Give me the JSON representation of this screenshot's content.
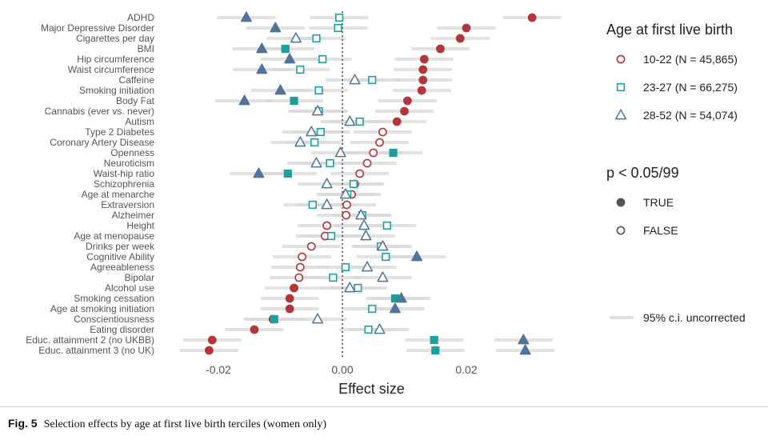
{
  "caption": {
    "label": "Fig. 5",
    "text": "Selection effects by age at first live birth terciles (women only)"
  },
  "chart_data": {
    "type": "scatter",
    "xlabel": "Effect size",
    "xlim": [
      -0.026,
      0.036
    ],
    "xticks": [
      -0.02,
      0.0,
      0.02
    ],
    "xtick_labels": [
      "-0.02",
      "0.00",
      "0.02"
    ],
    "ci_half_width": 0.0045,
    "zero_line": 0.0,
    "categories": [
      "ADHD",
      "Major Depressive Disorder",
      "Cigarettes per day",
      "BMI",
      "Hip circumference",
      "Waist circumference",
      "Caffeine",
      "Smoking initiation",
      "Body Fat",
      "Cannabis (ever vs. never)",
      "Autism",
      "Type 2 Diabetes",
      "Coronary Artery Disease",
      "Openness",
      "Neuroticism",
      "Waist-hip ratio",
      "Schizophrenia",
      "Age at menarche",
      "Extraversion",
      "Alzheimer",
      "Height",
      "Age at menopause",
      "Drinks per week",
      "Cognitive Ability",
      "Agreeableness",
      "Bipolar",
      "Alcohol use",
      "Smoking cessation",
      "Age at smoking initiation",
      "Conscientiousness",
      "Eating disorder",
      "Educ. attainment 2 (no UKBB)",
      "Educ. attainment 3 (no UK)"
    ],
    "series": [
      {
        "name": "10-22 (N = 45,865)",
        "shape": "circle",
        "color": "#b2373b",
        "values": [
          0.0306,
          0.02,
          0.019,
          0.0158,
          0.0132,
          0.013,
          0.013,
          0.0128,
          0.0105,
          0.01,
          0.0088,
          0.0065,
          0.006,
          0.005,
          0.004,
          0.0028,
          0.002,
          0.0015,
          0.0007,
          0.0006,
          -0.0025,
          -0.0028,
          -0.005,
          -0.0065,
          -0.0068,
          -0.007,
          -0.0078,
          -0.0085,
          -0.0085,
          -0.0112,
          -0.0142,
          -0.021,
          -0.0215
        ],
        "significant": [
          true,
          true,
          true,
          true,
          true,
          true,
          true,
          true,
          true,
          true,
          true,
          false,
          false,
          false,
          false,
          false,
          false,
          false,
          false,
          false,
          false,
          false,
          false,
          false,
          false,
          false,
          true,
          true,
          true,
          true,
          true,
          true,
          true
        ]
      },
      {
        "name": "23-27 (N = 66,275)",
        "shape": "square",
        "color": "#1f9e9e",
        "values": [
          -0.0005,
          -0.0007,
          -0.0042,
          -0.0092,
          -0.0032,
          -0.0068,
          0.0048,
          -0.0038,
          -0.0078,
          -0.0038,
          0.0028,
          -0.0035,
          -0.0045,
          0.0082,
          -0.002,
          -0.0088,
          0.0018,
          0.0008,
          -0.0048,
          0.0032,
          0.0072,
          -0.0018,
          0.0062,
          0.007,
          0.0005,
          -0.0015,
          0.0025,
          0.0085,
          0.0048,
          -0.011,
          0.0042,
          0.0148,
          0.015
        ],
        "significant": [
          false,
          false,
          false,
          true,
          false,
          false,
          false,
          false,
          true,
          false,
          false,
          false,
          false,
          true,
          false,
          true,
          false,
          false,
          false,
          false,
          false,
          false,
          false,
          false,
          false,
          false,
          false,
          true,
          false,
          true,
          false,
          true,
          true
        ]
      },
      {
        "name": "28-52 (N = 54,074)",
        "shape": "triangle",
        "color": "#4f7497",
        "values": [
          -0.0155,
          -0.0108,
          -0.0075,
          -0.013,
          -0.0085,
          -0.013,
          0.002,
          -0.01,
          -0.0158,
          -0.004,
          0.0012,
          -0.005,
          -0.0068,
          -0.0003,
          -0.0042,
          -0.0135,
          -0.0025,
          0.0005,
          -0.0025,
          0.003,
          0.0035,
          0.0038,
          0.0065,
          0.012,
          0.004,
          0.0065,
          0.0012,
          0.0095,
          0.0085,
          -0.004,
          0.006,
          0.0292,
          0.0295
        ],
        "significant": [
          true,
          true,
          false,
          true,
          true,
          true,
          false,
          true,
          true,
          false,
          false,
          false,
          false,
          false,
          false,
          true,
          false,
          false,
          false,
          false,
          false,
          false,
          false,
          true,
          false,
          false,
          false,
          true,
          true,
          false,
          false,
          true,
          true
        ]
      }
    ],
    "legend": {
      "placement": "right",
      "title_group": "Age at first live birth",
      "title_sig": "p < 0.05/99",
      "sig_true": "TRUE",
      "sig_false": "FALSE",
      "ci_label": "95% c.i. uncorrected"
    },
    "grid": false
  }
}
